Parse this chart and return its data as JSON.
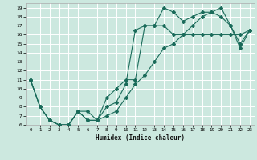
{
  "xlabel": "Humidex (Indice chaleur)",
  "bg_color": "#cce8df",
  "grid_color": "#ffffff",
  "line_color": "#1a6b5a",
  "xlim": [
    -0.5,
    23.5
  ],
  "ylim": [
    6,
    19.5
  ],
  "xticks": [
    0,
    1,
    2,
    3,
    4,
    5,
    6,
    7,
    8,
    9,
    10,
    11,
    12,
    13,
    14,
    15,
    16,
    17,
    18,
    19,
    20,
    21,
    22,
    23
  ],
  "yticks": [
    6,
    7,
    8,
    9,
    10,
    11,
    12,
    13,
    14,
    15,
    16,
    17,
    18,
    19
  ],
  "line1_x": [
    0,
    1,
    2,
    3,
    4,
    5,
    6,
    7,
    8,
    9,
    10,
    11,
    12,
    13,
    14,
    15,
    16,
    17,
    18,
    19,
    20,
    21,
    22,
    23
  ],
  "line1_y": [
    11,
    8,
    6.5,
    6,
    6,
    7.5,
    7.5,
    6.5,
    9,
    10,
    11,
    11,
    17,
    17,
    19,
    18.5,
    17.5,
    18,
    18.5,
    18.5,
    18,
    17,
    15,
    16.5
  ],
  "line2_x": [
    0,
    1,
    2,
    3,
    4,
    5,
    6,
    7,
    8,
    9,
    10,
    11,
    12,
    13,
    14,
    15,
    16,
    17,
    18,
    19,
    20,
    21,
    22,
    23
  ],
  "line2_y": [
    11,
    8,
    6.5,
    6,
    6,
    7.5,
    6.5,
    6.5,
    8,
    8.5,
    10.5,
    16.5,
    17,
    17,
    17,
    16,
    16,
    16,
    16,
    16,
    16,
    16,
    16,
    16.5
  ],
  "line3_x": [
    0,
    1,
    2,
    3,
    4,
    5,
    6,
    7,
    8,
    9,
    10,
    11,
    12,
    13,
    14,
    15,
    16,
    17,
    18,
    19,
    20,
    21,
    22,
    23
  ],
  "line3_y": [
    11,
    8,
    6.5,
    6,
    6,
    7.5,
    6.5,
    6.5,
    7,
    7.5,
    9,
    10.5,
    11.5,
    13,
    14.5,
    15,
    16,
    17,
    18,
    18.5,
    19,
    17,
    14.5,
    16.5
  ]
}
